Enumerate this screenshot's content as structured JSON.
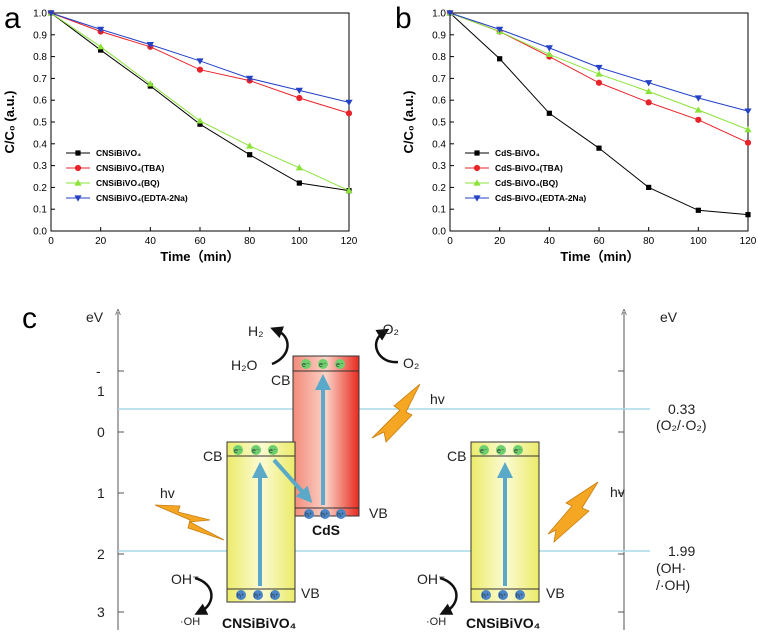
{
  "chart_data": [
    {
      "panel": "a",
      "type": "line",
      "title": "",
      "xlabel": "Time（min）",
      "ylabel": "C/C₀ (a.u.)",
      "xlim": [
        0,
        120
      ],
      "ylim": [
        0.0,
        1.0
      ],
      "xticks": [
        "0",
        "20",
        "40",
        "60",
        "80",
        "100",
        "120"
      ],
      "yticks": [
        "0.0",
        "0.1",
        "0.2",
        "0.3",
        "0.4",
        "0.5",
        "0.6",
        "0.7",
        "0.8",
        "0.9",
        "1.0"
      ],
      "x": [
        0,
        20,
        40,
        60,
        80,
        100,
        120
      ],
      "legend_position": "bottom-left",
      "series": [
        {
          "name": "CNSiBiVO₄",
          "color": "#000000",
          "marker": "square",
          "values": [
            1.0,
            0.83,
            0.665,
            0.49,
            0.35,
            0.22,
            0.185
          ]
        },
        {
          "name": "CNSiBiVO₄(TBA)",
          "color": "#e8232a",
          "marker": "circle",
          "values": [
            1.0,
            0.915,
            0.845,
            0.74,
            0.69,
            0.61,
            0.54
          ]
        },
        {
          "name": "CNSiBiVO₄(BQ)",
          "color": "#8be33a",
          "marker": "triangle-up",
          "values": [
            1.0,
            0.845,
            0.675,
            0.505,
            0.39,
            0.29,
            0.185
          ]
        },
        {
          "name": "CNSiBiVO₄(EDTA-2Na)",
          "color": "#2342c5",
          "marker": "triangle-down",
          "values": [
            1.0,
            0.925,
            0.855,
            0.78,
            0.7,
            0.645,
            0.59
          ]
        }
      ]
    },
    {
      "panel": "b",
      "type": "line",
      "title": "",
      "xlabel": "Time（min）",
      "ylabel": "C/C₀ (a.u.)",
      "xlim": [
        0,
        120
      ],
      "ylim": [
        0.0,
        1.0
      ],
      "xticks": [
        "0",
        "20",
        "40",
        "60",
        "80",
        "100",
        "120"
      ],
      "yticks": [
        "0.0",
        "0.1",
        "0.2",
        "0.3",
        "0.4",
        "0.5",
        "0.6",
        "0.7",
        "0.8",
        "0.9",
        "1.0"
      ],
      "x": [
        0,
        20,
        40,
        60,
        80,
        100,
        120
      ],
      "legend_position": "bottom-left",
      "series": [
        {
          "name": "CdS-BiVO₄",
          "color": "#000000",
          "marker": "square",
          "values": [
            1.0,
            0.79,
            0.54,
            0.38,
            0.2,
            0.095,
            0.075
          ]
        },
        {
          "name": "CdS-BiVO₄(TBA)",
          "color": "#e8232a",
          "marker": "circle",
          "values": [
            1.0,
            0.915,
            0.8,
            0.68,
            0.59,
            0.51,
            0.405
          ]
        },
        {
          "name": "CdS-BiVO₄(BQ)",
          "color": "#8be33a",
          "marker": "triangle-up",
          "values": [
            1.0,
            0.915,
            0.81,
            0.72,
            0.64,
            0.555,
            0.465
          ]
        },
        {
          "name": "CdS-BiVO₄(EDTA-2Na)",
          "color": "#2342c5",
          "marker": "triangle-down",
          "values": [
            1.0,
            0.925,
            0.84,
            0.75,
            0.68,
            0.61,
            0.55
          ]
        }
      ]
    }
  ],
  "panel_labels": {
    "a": "a",
    "b": "b",
    "c": "c"
  },
  "diagram": {
    "ev_label": "eV",
    "left_axis_ticks": [
      "-",
      "1",
      "0",
      "1",
      "2",
      "3"
    ],
    "potentials": [
      {
        "value": "0.33",
        "species": "(O₂/·O₂)",
        "ev": 0.33
      },
      {
        "value": "1.99",
        "species_line1": "(OH·",
        "species_line2": "/·OH)",
        "ev": 1.99
      }
    ],
    "cb_label": "CB",
    "vb_label": "VB",
    "hv_label": "hv",
    "electron_label": "e⁻",
    "hole_label": "h⁺",
    "cds_label": "CdS",
    "bivo4_label": "CNSiBiVO₄",
    "h2": "H₂",
    "h2o": "H₂O",
    "o2_radical": "·O₂",
    "o2": "O₂",
    "oh_minus": "OH⁻",
    "oh_radical": "·OH",
    "colors": {
      "cds_top": "#f08a7a",
      "cds_bottom": "#e8291e",
      "bivo4": "#f2f08a",
      "arrow_cyan": "#5aa9c9",
      "level_line": "#aad8ea",
      "electron": "#6dd06d",
      "hole": "#4a86c8",
      "lightning": "#f5a623"
    }
  }
}
